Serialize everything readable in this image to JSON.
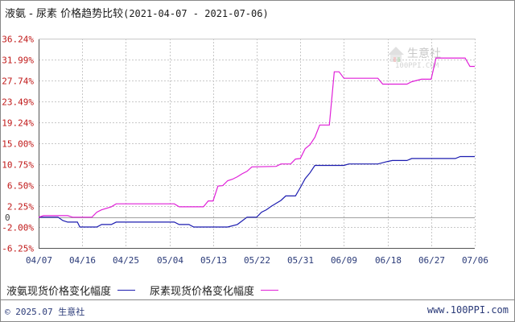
{
  "title": {
    "main": "液氨 - 尿素 价格趋势比较",
    "range": "(2021-04-07 - 2021-07-06)"
  },
  "watermark": {
    "name": "生意社",
    "url": "100PPI.COM"
  },
  "legend": [
    {
      "label": "液氨现货价格变化幅度",
      "color": "#1c1cb0"
    },
    {
      "label": "尿素现货价格变化幅度",
      "color": "#e020d8"
    }
  ],
  "footer": {
    "copyright": "© 2025.07 生意社",
    "site": "www.100PPI.com"
  },
  "chart_data": {
    "type": "line",
    "y_ticks": [
      "36.24%",
      "31.99%",
      "27.74%",
      "23.49%",
      "19.24%",
      "15.00%",
      "10.75%",
      "6.50%",
      "2.25%",
      "-2.00%",
      "-6.25%"
    ],
    "extra_y_label": "0",
    "ylim": [
      -6.25,
      36.24
    ],
    "x_ticks": [
      "04/07",
      "04/16",
      "04/25",
      "05/04",
      "05/13",
      "05/22",
      "05/31",
      "06/09",
      "06/18",
      "06/27",
      "07/06"
    ],
    "x_tick_days": [
      0,
      9,
      18,
      27,
      36,
      45,
      54,
      63,
      72,
      81,
      90
    ],
    "x_range_days": [
      0,
      90
    ],
    "series": [
      {
        "name": "液氨现货价格变化幅度",
        "color": "#1c1cb0",
        "points": [
          [
            0,
            0
          ],
          [
            4,
            0
          ],
          [
            5,
            -0.7
          ],
          [
            6,
            -1.0
          ],
          [
            8,
            -1.0
          ],
          [
            8.5,
            -2.0
          ],
          [
            12,
            -2.0
          ],
          [
            13,
            -1.5
          ],
          [
            15,
            -1.5
          ],
          [
            16,
            -1.0
          ],
          [
            28,
            -1.0
          ],
          [
            29,
            -1.5
          ],
          [
            31,
            -1.5
          ],
          [
            32,
            -2.0
          ],
          [
            39,
            -2.0
          ],
          [
            41,
            -1.5
          ],
          [
            43,
            0
          ],
          [
            45,
            0
          ],
          [
            46,
            1.0
          ],
          [
            47,
            1.5
          ],
          [
            48,
            2.2
          ],
          [
            49,
            2.8
          ],
          [
            50,
            3.4
          ],
          [
            51,
            4.3
          ],
          [
            53,
            4.3
          ],
          [
            54,
            6.0
          ],
          [
            55,
            7.8
          ],
          [
            56,
            9.0
          ],
          [
            57,
            10.5
          ],
          [
            63,
            10.5
          ],
          [
            64,
            10.8
          ],
          [
            70,
            10.8
          ],
          [
            72,
            11.3
          ],
          [
            73,
            11.5
          ],
          [
            76,
            11.5
          ],
          [
            77,
            11.9
          ],
          [
            86,
            11.9
          ],
          [
            87,
            12.3
          ],
          [
            90,
            12.3
          ]
        ]
      },
      {
        "name": "尿素现货价格变化幅度",
        "color": "#e020d8",
        "points": [
          [
            0,
            0
          ],
          [
            1,
            0.3
          ],
          [
            6,
            0.3
          ],
          [
            7,
            0
          ],
          [
            11,
            0
          ],
          [
            12,
            1.0
          ],
          [
            13,
            1.5
          ],
          [
            15,
            2.1
          ],
          [
            16,
            2.7
          ],
          [
            28,
            2.7
          ],
          [
            29,
            2.1
          ],
          [
            34,
            2.1
          ],
          [
            35,
            3.3
          ],
          [
            36,
            3.3
          ],
          [
            37,
            6.3
          ],
          [
            38,
            6.4
          ],
          [
            39,
            7.4
          ],
          [
            40,
            7.7
          ],
          [
            41,
            8.2
          ],
          [
            42,
            8.8
          ],
          [
            43,
            9.3
          ],
          [
            44,
            10.2
          ],
          [
            49,
            10.3
          ],
          [
            50,
            10.8
          ],
          [
            52,
            10.8
          ],
          [
            53,
            11.8
          ],
          [
            54,
            11.9
          ],
          [
            55,
            13.9
          ],
          [
            56,
            14.7
          ],
          [
            57,
            16.2
          ],
          [
            58,
            18.7
          ],
          [
            60,
            18.7
          ],
          [
            61,
            29.5
          ],
          [
            62,
            29.5
          ],
          [
            63,
            28.2
          ],
          [
            70,
            28.2
          ],
          [
            71,
            27.0
          ],
          [
            76,
            27.0
          ],
          [
            77,
            27.5
          ],
          [
            79,
            28.0
          ],
          [
            81,
            28.0
          ],
          [
            82,
            32.3
          ],
          [
            88,
            32.3
          ],
          [
            89,
            30.6
          ],
          [
            90,
            30.6
          ]
        ]
      }
    ]
  }
}
